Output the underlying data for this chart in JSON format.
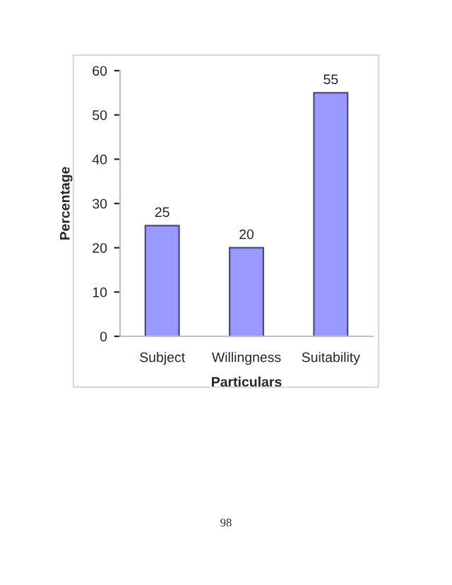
{
  "chart_data": {
    "type": "bar",
    "xlabel": "Particulars",
    "ylabel": "Percentage",
    "categories": [
      "Subject",
      "Willingness",
      "Suitability"
    ],
    "values": [
      25,
      20,
      55
    ],
    "color": "#9999ff",
    "ylim": [
      0,
      60
    ],
    "yticks": [
      0,
      10,
      20,
      30,
      40,
      50,
      60
    ],
    "grid": false,
    "data_labels": true,
    "annotations": [
      "98"
    ]
  }
}
